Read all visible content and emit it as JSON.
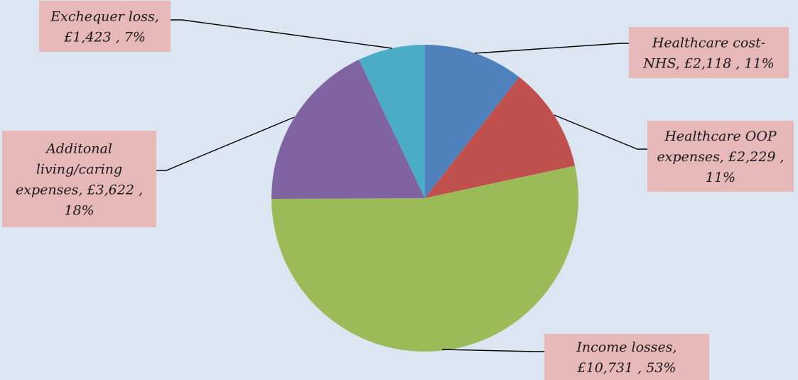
{
  "chart_data": {
    "type": "pie",
    "title": "",
    "legend": "none",
    "slices": [
      {
        "name": "Healthcare cost-NHS",
        "value": 2118,
        "percent": 11,
        "color": "#4f81bd",
        "label_lines": [
          "Healthcare cost-",
          "NHS,  £2,118 , 11%"
        ]
      },
      {
        "name": "Healthcare OOP expenses",
        "value": 2229,
        "percent": 11,
        "color": "#c0504d",
        "label_lines": [
          "Healthcare OOP",
          "expenses,  £2,229 ,",
          "11%"
        ]
      },
      {
        "name": "Income losses",
        "value": 10731,
        "percent": 53,
        "color": "#9bbb59",
        "label_lines": [
          "Income losses,",
          "£10,731 , 53%"
        ]
      },
      {
        "name": "Additonal living/caring expenses",
        "value": 3622,
        "percent": 18,
        "color": "#8064a2",
        "label_lines": [
          "Additonal",
          "living/caring",
          "expenses,  £3,622 ,",
          "18%"
        ]
      },
      {
        "name": "Exchequer loss",
        "value": 1423,
        "percent": 7,
        "color": "#4bacc6",
        "label_lines": [
          "Exchequer loss,",
          "£1,423 , 7%"
        ]
      }
    ]
  }
}
